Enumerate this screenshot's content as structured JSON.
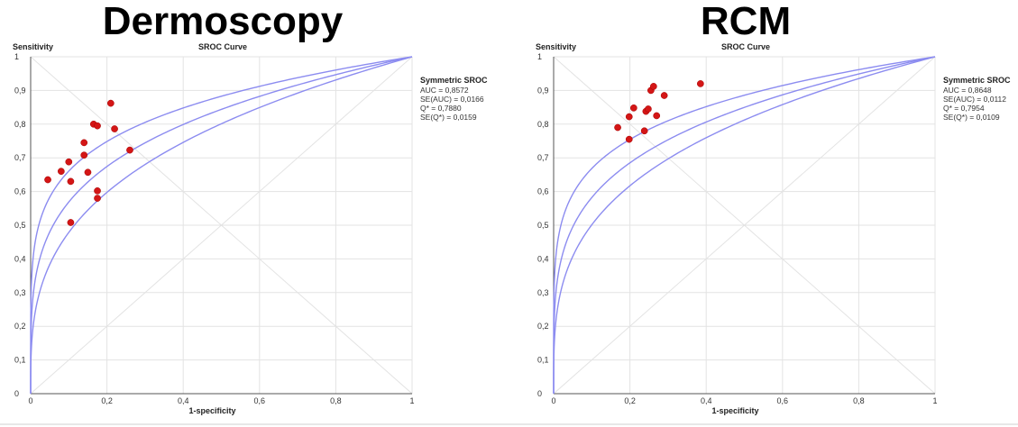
{
  "chart_data": [
    {
      "type": "scatter",
      "big_title": "Dermoscopy",
      "title": "SROC Curve",
      "xlabel": "1-specificity",
      "ylabel": "Sensitivity",
      "xlim": [
        0,
        1
      ],
      "ylim": [
        0,
        1
      ],
      "x_ticks": [
        "0",
        "0,2",
        "0,4",
        "0,6",
        "0,8",
        "1"
      ],
      "y_ticks": [
        "0",
        "0,1",
        "0,2",
        "0,3",
        "0,4",
        "0,5",
        "0,6",
        "0,7",
        "0,8",
        "0,9",
        "1"
      ],
      "grid": true,
      "stats": {
        "heading": "Symmetric SROC",
        "lines": [
          "AUC = 0,8572",
          "SE(AUC) = 0,0166",
          "Q* = 0,7880",
          "SE(Q*) = 0,0159"
        ]
      },
      "points": [
        {
          "x": 0.045,
          "y": 0.635
        },
        {
          "x": 0.08,
          "y": 0.66
        },
        {
          "x": 0.1,
          "y": 0.688
        },
        {
          "x": 0.105,
          "y": 0.63
        },
        {
          "x": 0.105,
          "y": 0.508
        },
        {
          "x": 0.14,
          "y": 0.745
        },
        {
          "x": 0.14,
          "y": 0.708
        },
        {
          "x": 0.15,
          "y": 0.657
        },
        {
          "x": 0.165,
          "y": 0.8
        },
        {
          "x": 0.175,
          "y": 0.795
        },
        {
          "x": 0.175,
          "y": 0.602
        },
        {
          "x": 0.175,
          "y": 0.58
        },
        {
          "x": 0.21,
          "y": 0.862
        },
        {
          "x": 0.22,
          "y": 0.786
        },
        {
          "x": 0.26,
          "y": 0.723
        }
      ],
      "curves": [
        {
          "auc": 0.8572,
          "b": 0.32
        },
        {
          "auc": 0.8572,
          "b": 0.245
        },
        {
          "auc": 0.8572,
          "b": 0.18
        }
      ]
    },
    {
      "type": "scatter",
      "big_title": "RCM",
      "title": "SROC Curve",
      "xlabel": "1-specificity",
      "ylabel": "Sensitivity",
      "xlim": [
        0,
        1
      ],
      "ylim": [
        0,
        1
      ],
      "x_ticks": [
        "0",
        "0,2",
        "0,4",
        "0,6",
        "0,8",
        "1"
      ],
      "y_ticks": [
        "0",
        "0,1",
        "0,2",
        "0,3",
        "0,4",
        "0,5",
        "0,6",
        "0,7",
        "0,8",
        "0,9",
        "1"
      ],
      "grid": true,
      "stats": {
        "heading": "Symmetric SROC",
        "lines": [
          "AUC = 0,8648",
          "SE(AUC) = 0,0112",
          "Q* = 0,7954",
          "SE(Q*) = 0,0109"
        ]
      },
      "points": [
        {
          "x": 0.168,
          "y": 0.79
        },
        {
          "x": 0.198,
          "y": 0.822
        },
        {
          "x": 0.198,
          "y": 0.755
        },
        {
          "x": 0.21,
          "y": 0.848
        },
        {
          "x": 0.238,
          "y": 0.78
        },
        {
          "x": 0.242,
          "y": 0.838
        },
        {
          "x": 0.248,
          "y": 0.845
        },
        {
          "x": 0.255,
          "y": 0.9
        },
        {
          "x": 0.262,
          "y": 0.912
        },
        {
          "x": 0.27,
          "y": 0.825
        },
        {
          "x": 0.29,
          "y": 0.885
        },
        {
          "x": 0.385,
          "y": 0.92
        }
      ],
      "curves": [
        {
          "auc": 0.8648,
          "b": 0.3
        },
        {
          "auc": 0.8648,
          "b": 0.235
        },
        {
          "auc": 0.8648,
          "b": 0.175
        }
      ]
    }
  ]
}
